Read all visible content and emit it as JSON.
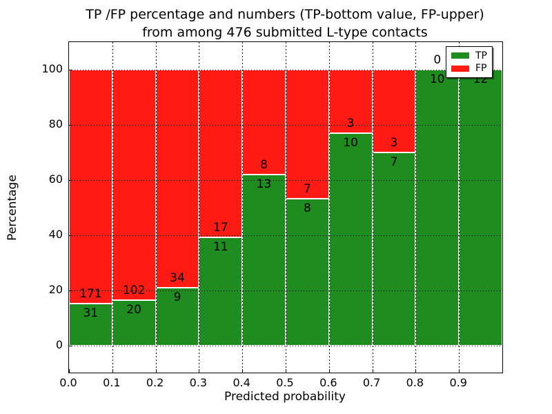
{
  "figure": {
    "title_line1": "TP /FP percentage and numbers (TP-bottom value, FP-upper)",
    "title_line2": "from among 476 submitted L-type contacts",
    "xlabel": "Predicted probability",
    "ylabel": "Percentage"
  },
  "legend": {
    "position": "upper right",
    "items": [
      {
        "label": "TP",
        "color": "#1f8c1f"
      },
      {
        "label": "FP",
        "color": "#ff1a14"
      }
    ]
  },
  "chart_data": {
    "type": "bar",
    "stacked": true,
    "normalized_to_percent": 100,
    "title": "TP /FP percentage and numbers (TP-bottom value, FP-upper) from among 476 submitted L-type contacts",
    "xlabel": "Predicted probability",
    "ylabel": "Percentage",
    "total_contacts": 476,
    "x_bin_edges": [
      0.0,
      0.1,
      0.2,
      0.3,
      0.4,
      0.5,
      0.6,
      0.7,
      0.8,
      0.9,
      1.0
    ],
    "categories": [
      "0.0-0.1",
      "0.1-0.2",
      "0.2-0.3",
      "0.3-0.4",
      "0.4-0.5",
      "0.5-0.6",
      "0.6-0.7",
      "0.7-0.8",
      "0.8-0.9",
      "0.9-1.0"
    ],
    "series": [
      {
        "name": "TP",
        "color": "#1f8c1f",
        "counts": [
          31,
          20,
          9,
          11,
          13,
          8,
          10,
          7,
          10,
          12
        ]
      },
      {
        "name": "FP",
        "color": "#ff1a14",
        "counts": [
          171,
          102,
          34,
          17,
          8,
          7,
          3,
          3,
          0,
          0
        ]
      }
    ],
    "tp_percent": [
      15.3,
      16.4,
      20.9,
      39.3,
      61.9,
      53.3,
      76.9,
      70.0,
      100.0,
      100.0
    ],
    "xticks": [
      "0.0",
      "0.1",
      "0.2",
      "0.3",
      "0.4",
      "0.5",
      "0.6",
      "0.7",
      "0.8",
      "0.9"
    ],
    "yticks": [
      0,
      20,
      40,
      60,
      80,
      100
    ],
    "xlim": [
      0.0,
      1.0
    ],
    "ylim": [
      -9.75,
      110
    ],
    "grid": true,
    "grid_style": "dotted",
    "legend_position": "upper right"
  }
}
